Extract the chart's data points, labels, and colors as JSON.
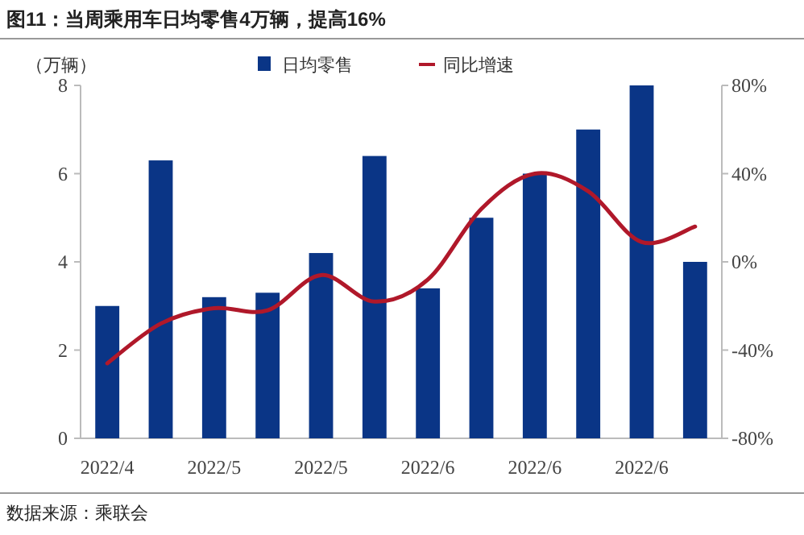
{
  "chart_data": {
    "type": "bar",
    "title": "图11：当周乘用车日均零售4万辆，提高16%",
    "ylabel": "（万辆）",
    "categories": [
      "2022/4",
      null,
      "2022/5",
      null,
      "2022/5",
      null,
      "2022/6",
      null,
      "2022/6",
      null,
      "2022/6",
      null
    ],
    "series": [
      {
        "name": "日均零售",
        "color": "#0a3586",
        "values": [
          3.0,
          6.3,
          3.2,
          3.3,
          4.2,
          6.4,
          3.4,
          5.0,
          6.0,
          7.0,
          8.0,
          4.0
        ]
      },
      {
        "name": "同比增速",
        "type": "line",
        "axis": "y2",
        "color": "#b0182a",
        "values": [
          -46,
          -28,
          -21,
          -22,
          -6,
          -18,
          -8,
          24,
          40,
          32,
          9,
          16
        ]
      }
    ],
    "ylim": [
      0,
      8
    ],
    "yticks": [
      0,
      2,
      4,
      6,
      8
    ],
    "y2lim": [
      -80,
      80
    ],
    "y2ticks": [
      {
        "value": -80,
        "label": "-80%"
      },
      {
        "value": -40,
        "label": "-40%"
      },
      {
        "value": 0,
        "label": "0%"
      },
      {
        "value": 40,
        "label": "40%"
      },
      {
        "value": 80,
        "label": "80%"
      }
    ],
    "legend": "top",
    "grid": false,
    "annotations": [
      "数据来源：乘联会"
    ]
  }
}
